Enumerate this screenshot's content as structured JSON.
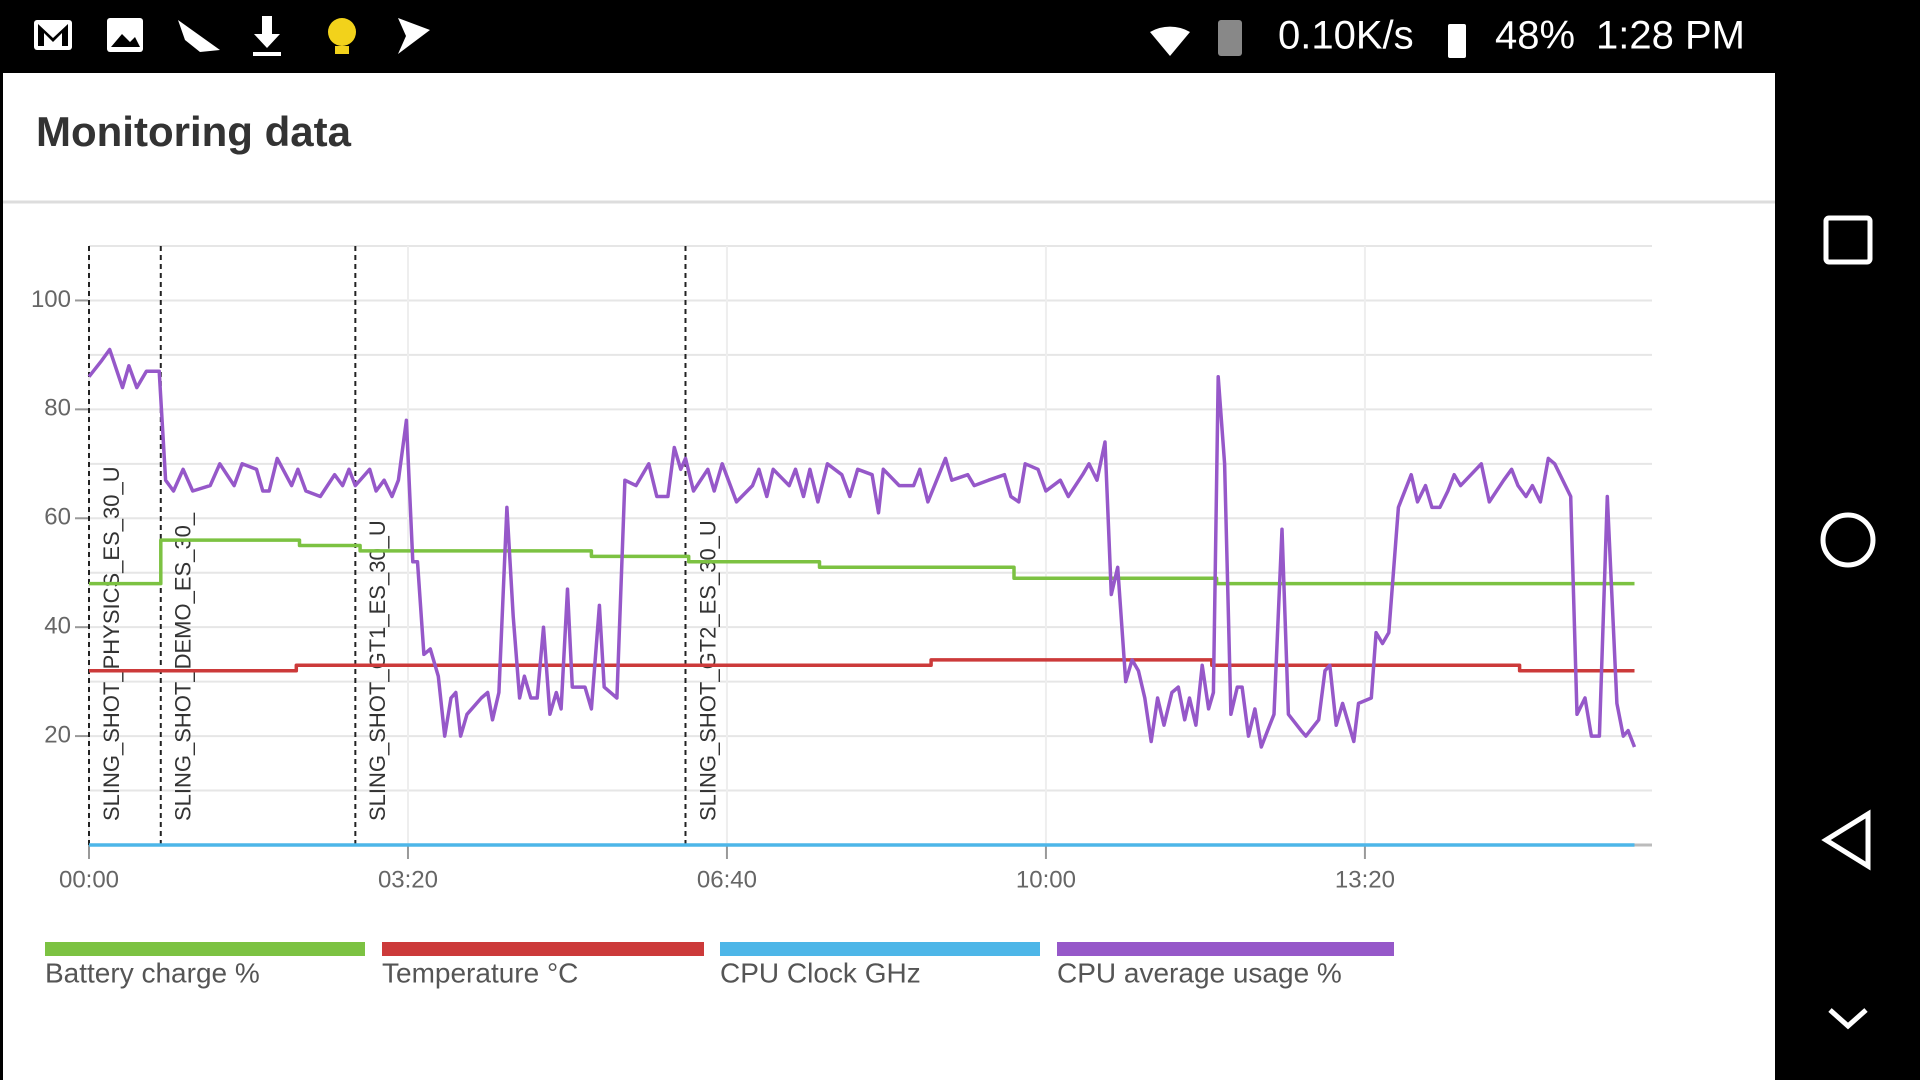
{
  "status_bar": {
    "network_speed": "0.10K/s",
    "battery": "48%",
    "time": "1:28 PM"
  },
  "card": {
    "title": "Monitoring data"
  },
  "chart_data": {
    "type": "line",
    "xlim": [
      0,
      980
    ],
    "xticks": [
      {
        "value": 0,
        "label": "00:00"
      },
      {
        "value": 200,
        "label": "03:20"
      },
      {
        "value": 400,
        "label": "06:40"
      },
      {
        "value": 600,
        "label": "10:00"
      },
      {
        "value": 800,
        "label": "13:20"
      }
    ],
    "ylim": [
      0,
      110
    ],
    "yticks": [
      20,
      40,
      60,
      80,
      100
    ],
    "y_minor_ticks": [
      10,
      30,
      50,
      70,
      90,
      110
    ],
    "grid": true,
    "legend": "bottom",
    "markers": [
      {
        "x": 0,
        "label": "SLING_SHOT_PHYSICS_ES_30_U"
      },
      {
        "x": 45,
        "label": "SLING_SHOT_DEMO_ES_30_"
      },
      {
        "x": 167,
        "label": "SLING_SHOT_GT1_ES_30_U"
      },
      {
        "x": 374,
        "label": "SLING_SHOT_GT2_ES_30_U"
      }
    ],
    "series": [
      {
        "name": "Battery charge %",
        "color": "#7cc242",
        "x": [
          0,
          45,
          45,
          132,
          132,
          170,
          170,
          315,
          315,
          376,
          376,
          458,
          458,
          580,
          580,
          707,
          707,
          969
        ],
        "values": [
          48,
          48,
          56,
          56,
          55,
          55,
          54,
          54,
          53,
          53,
          52,
          52,
          51,
          51,
          49,
          49,
          48,
          48
        ]
      },
      {
        "name": "Temperature °C",
        "color": "#cc3a3a",
        "x": [
          0,
          130,
          130,
          528,
          528,
          704,
          704,
          897,
          897,
          969
        ],
        "values": [
          32,
          32,
          33,
          33,
          34,
          34,
          33,
          33,
          32,
          32
        ]
      },
      {
        "name": "CPU Clock GHz",
        "color": "#4db6e8",
        "x": [
          0,
          969
        ],
        "values": [
          0,
          0
        ]
      },
      {
        "name": "CPU average usage %",
        "color": "#9658c9",
        "x": [
          0,
          8,
          13,
          21,
          25,
          30,
          36,
          44,
          48,
          53,
          59,
          65,
          76,
          82,
          91,
          96,
          105,
          109,
          113,
          118,
          127,
          131,
          136,
          145,
          154,
          159,
          163,
          167,
          176,
          180,
          185,
          190,
          194,
          199,
          203,
          206,
          210,
          214,
          219,
          223,
          227,
          230,
          233,
          237,
          246,
          250,
          253,
          257,
          262,
          266,
          270,
          273,
          277,
          281,
          285,
          289,
          293,
          296,
          300,
          303,
          311,
          315,
          320,
          323,
          331,
          336,
          343,
          351,
          356,
          363,
          367,
          371,
          374,
          379,
          388,
          392,
          397,
          406,
          416,
          420,
          425,
          429,
          439,
          443,
          448,
          452,
          457,
          463,
          472,
          477,
          482,
          491,
          495,
          498,
          508,
          517,
          521,
          526,
          537,
          541,
          551,
          555,
          564,
          574,
          578,
          583,
          587,
          595,
          600,
          609,
          614,
          623,
          627,
          632,
          637,
          641,
          645,
          650,
          654,
          658,
          662,
          666,
          670,
          674,
          679,
          683,
          687,
          690,
          694,
          698,
          702,
          705,
          708,
          712,
          716,
          720,
          723,
          727,
          731,
          735,
          739,
          743,
          748,
          752,
          760,
          763,
          771,
          775,
          778,
          782,
          786,
          793,
          796,
          804,
          807,
          811,
          815,
          821,
          829,
          833,
          838,
          842,
          847,
          852,
          856,
          860,
          873,
          878,
          887,
          892,
          896,
          901,
          905,
          910,
          915,
          919,
          929,
          933,
          938,
          942,
          947,
          952,
          958,
          962,
          965,
          969
        ],
        "values": [
          86,
          89,
          91,
          84,
          88,
          84,
          87,
          87,
          67,
          65,
          69,
          65,
          66,
          70,
          66,
          70,
          69,
          65,
          65,
          71,
          66,
          69,
          65,
          64,
          68,
          66,
          69,
          66,
          69,
          65,
          67,
          64,
          67,
          78,
          52,
          52,
          35,
          36,
          31,
          20,
          27,
          28,
          20,
          24,
          27,
          28,
          23,
          28,
          62,
          42,
          27,
          31,
          27,
          27,
          40,
          24,
          28,
          25,
          47,
          29,
          29,
          25,
          44,
          29,
          27,
          67,
          66,
          70,
          64,
          64,
          73,
          69,
          71,
          65,
          69,
          65,
          70,
          63,
          66,
          69,
          64,
          69,
          66,
          69,
          64,
          69,
          63,
          70,
          68,
          64,
          69,
          68,
          61,
          69,
          66,
          66,
          69,
          63,
          71,
          67,
          68,
          66,
          67,
          68,
          64,
          63,
          70,
          69,
          65,
          67,
          64,
          68,
          70,
          67,
          74,
          46,
          51,
          30,
          34,
          32,
          27,
          19,
          27,
          22,
          28,
          29,
          23,
          27,
          22,
          33,
          25,
          28,
          86,
          70,
          24,
          29,
          29,
          20,
          25,
          18,
          21,
          24,
          58,
          24,
          21,
          20,
          23,
          32,
          33,
          22,
          26,
          19,
          26,
          27,
          39,
          37,
          39,
          62,
          68,
          63,
          66,
          62,
          62,
          65,
          68,
          66,
          70,
          63,
          67,
          69,
          66,
          64,
          66,
          63,
          71,
          70,
          64,
          24,
          27,
          20,
          20,
          64,
          26,
          20,
          21,
          18
        ]
      }
    ]
  }
}
